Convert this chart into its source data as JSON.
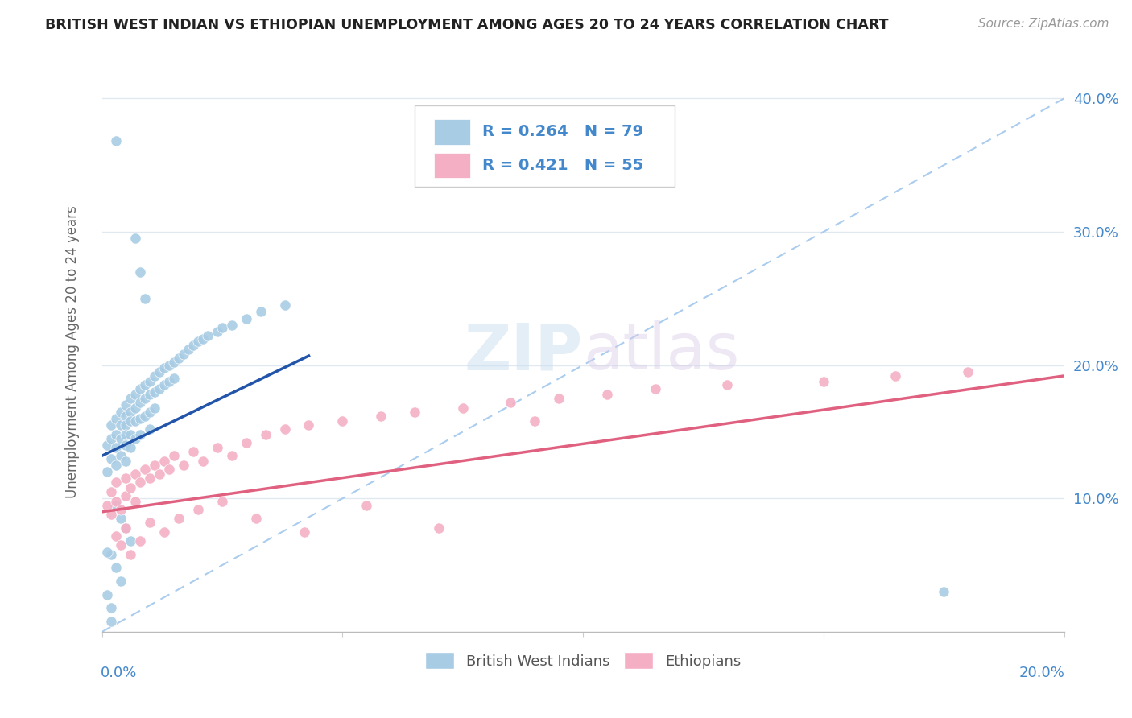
{
  "title": "BRITISH WEST INDIAN VS ETHIOPIAN UNEMPLOYMENT AMONG AGES 20 TO 24 YEARS CORRELATION CHART",
  "source": "Source: ZipAtlas.com",
  "ylabel": "Unemployment Among Ages 20 to 24 years",
  "x_range": [
    0.0,
    0.2
  ],
  "y_range": [
    0.0,
    0.42
  ],
  "blue_R": 0.264,
  "blue_N": 79,
  "pink_R": 0.421,
  "pink_N": 55,
  "blue_color": "#a8cce4",
  "pink_color": "#f4afc5",
  "blue_line_color": "#2255aa",
  "pink_line_color": "#e06080",
  "dashed_line_color": "#aaccee",
  "legend_label_blue": "British West Indians",
  "legend_label_pink": "Ethiopians",
  "watermark": "ZIPatlas",
  "background_color": "#ffffff",
  "grid_color": "#e0e8f0",
  "axis_label_color": "#4488cc",
  "blue_scatter_x": [
    0.001,
    0.001,
    0.002,
    0.002,
    0.002,
    0.003,
    0.003,
    0.003,
    0.003,
    0.004,
    0.004,
    0.004,
    0.004,
    0.005,
    0.005,
    0.005,
    0.005,
    0.005,
    0.005,
    0.006,
    0.006,
    0.006,
    0.006,
    0.006,
    0.007,
    0.007,
    0.007,
    0.007,
    0.008,
    0.008,
    0.008,
    0.008,
    0.009,
    0.009,
    0.009,
    0.01,
    0.01,
    0.01,
    0.01,
    0.011,
    0.011,
    0.011,
    0.012,
    0.012,
    0.013,
    0.013,
    0.014,
    0.014,
    0.015,
    0.015,
    0.016,
    0.017,
    0.018,
    0.019,
    0.02,
    0.021,
    0.022,
    0.024,
    0.025,
    0.027,
    0.03,
    0.033,
    0.038,
    0.003,
    0.004,
    0.005,
    0.006,
    0.002,
    0.003,
    0.004,
    0.001,
    0.002,
    0.003,
    0.007,
    0.008,
    0.009,
    0.001,
    0.002,
    0.175
  ],
  "blue_scatter_y": [
    0.14,
    0.12,
    0.155,
    0.145,
    0.13,
    0.16,
    0.148,
    0.138,
    0.125,
    0.165,
    0.155,
    0.145,
    0.132,
    0.17,
    0.162,
    0.155,
    0.148,
    0.14,
    0.128,
    0.175,
    0.165,
    0.158,
    0.148,
    0.138,
    0.178,
    0.168,
    0.158,
    0.145,
    0.182,
    0.172,
    0.16,
    0.148,
    0.185,
    0.175,
    0.162,
    0.188,
    0.178,
    0.165,
    0.152,
    0.192,
    0.18,
    0.168,
    0.195,
    0.182,
    0.198,
    0.185,
    0.2,
    0.188,
    0.202,
    0.19,
    0.205,
    0.208,
    0.212,
    0.215,
    0.218,
    0.22,
    0.222,
    0.225,
    0.228,
    0.23,
    0.235,
    0.24,
    0.245,
    0.095,
    0.085,
    0.078,
    0.068,
    0.058,
    0.048,
    0.038,
    0.028,
    0.018,
    0.368,
    0.295,
    0.27,
    0.25,
    0.06,
    0.008,
    0.03
  ],
  "pink_scatter_x": [
    0.001,
    0.002,
    0.002,
    0.003,
    0.003,
    0.004,
    0.005,
    0.005,
    0.006,
    0.007,
    0.007,
    0.008,
    0.009,
    0.01,
    0.011,
    0.012,
    0.013,
    0.014,
    0.015,
    0.017,
    0.019,
    0.021,
    0.024,
    0.027,
    0.03,
    0.034,
    0.038,
    0.043,
    0.05,
    0.058,
    0.065,
    0.075,
    0.085,
    0.095,
    0.105,
    0.115,
    0.13,
    0.15,
    0.165,
    0.18,
    0.003,
    0.004,
    0.005,
    0.006,
    0.008,
    0.01,
    0.013,
    0.016,
    0.02,
    0.025,
    0.032,
    0.042,
    0.055,
    0.07,
    0.09
  ],
  "pink_scatter_y": [
    0.095,
    0.088,
    0.105,
    0.098,
    0.112,
    0.092,
    0.102,
    0.115,
    0.108,
    0.098,
    0.118,
    0.112,
    0.122,
    0.115,
    0.125,
    0.118,
    0.128,
    0.122,
    0.132,
    0.125,
    0.135,
    0.128,
    0.138,
    0.132,
    0.142,
    0.148,
    0.152,
    0.155,
    0.158,
    0.162,
    0.165,
    0.168,
    0.172,
    0.175,
    0.178,
    0.182,
    0.185,
    0.188,
    0.192,
    0.195,
    0.072,
    0.065,
    0.078,
    0.058,
    0.068,
    0.082,
    0.075,
    0.085,
    0.092,
    0.098,
    0.085,
    0.075,
    0.095,
    0.078,
    0.158
  ],
  "blue_line_x": [
    0.0,
    0.043
  ],
  "blue_line_y": [
    0.132,
    0.207
  ],
  "pink_line_x": [
    0.0,
    0.2
  ],
  "pink_line_y": [
    0.09,
    0.192
  ],
  "dash_line_x": [
    0.0,
    0.2
  ],
  "dash_line_y": [
    0.0,
    0.4
  ]
}
